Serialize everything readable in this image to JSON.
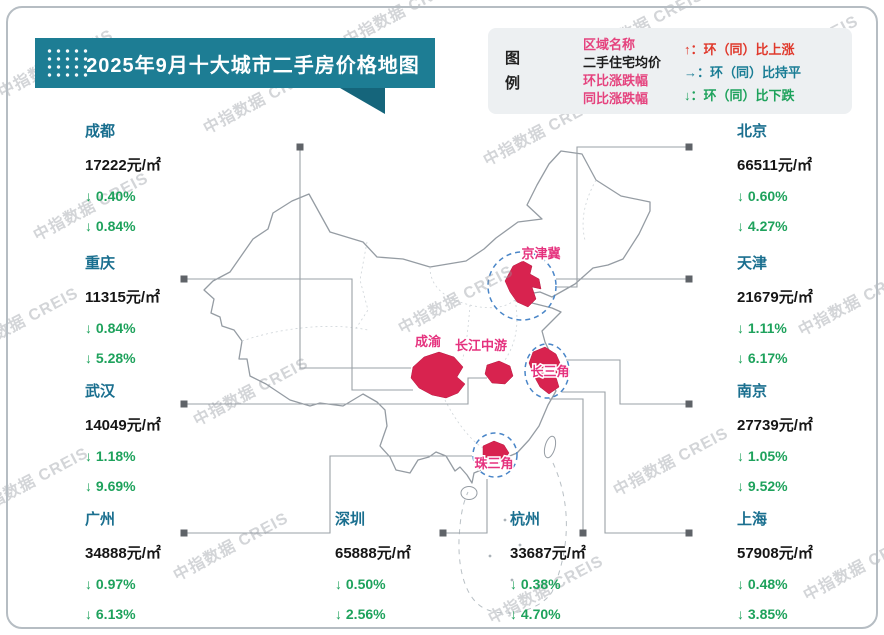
{
  "title": "2025年9月十大城市二手房价格地图",
  "watermark": "中指数据 CREIS",
  "legend": {
    "heading": "图例",
    "fields": [
      {
        "label": "区域名称",
        "color": "#e5437e"
      },
      {
        "label": "二手住宅均价",
        "color": "#1c1c1c"
      },
      {
        "label": "环比涨跌幅",
        "color": "#e5437e"
      },
      {
        "label": "同比涨跌幅",
        "color": "#e5437e"
      }
    ],
    "arrows": [
      {
        "symbol": "↑：",
        "label": "环（同）比上涨",
        "color": "#e0392c"
      },
      {
        "symbol": "→：",
        "label": "环（同）比持平",
        "color": "#1a7d95"
      },
      {
        "symbol": "↓：",
        "label": "环（同）比下跌",
        "color": "#1ea25c"
      }
    ]
  },
  "regions": [
    {
      "name": "京津冀"
    },
    {
      "name": "成渝"
    },
    {
      "name": "长江中游"
    },
    {
      "name": "长三角"
    },
    {
      "name": "珠三角"
    }
  ],
  "cities": [
    {
      "name": "成都",
      "price": "17222元/㎡",
      "mom": "↓ 0.40%",
      "yoy": "↓ 0.84%"
    },
    {
      "name": "重庆",
      "price": "11315元/㎡",
      "mom": "↓ 0.84%",
      "yoy": "↓ 5.28%"
    },
    {
      "name": "武汉",
      "price": "14049元/㎡",
      "mom": "↓ 1.18%",
      "yoy": "↓ 9.69%"
    },
    {
      "name": "广州",
      "price": "34888元/㎡",
      "mom": "↓ 0.97%",
      "yoy": "↓ 6.13%"
    },
    {
      "name": "深圳",
      "price": "65888元/㎡",
      "mom": "↓ 0.50%",
      "yoy": "↓ 2.56%"
    },
    {
      "name": "杭州",
      "price": "33687元/㎡",
      "mom": "↓ 0.38%",
      "yoy": "↓ 4.70%"
    },
    {
      "name": "北京",
      "price": "66511元/㎡",
      "mom": "↓ 0.60%",
      "yoy": "↓ 4.27%"
    },
    {
      "name": "天津",
      "price": "21679元/㎡",
      "mom": "↓ 1.11%",
      "yoy": "↓ 6.17%"
    },
    {
      "name": "南京",
      "price": "27739元/㎡",
      "mom": "↓ 1.05%",
      "yoy": "↓ 9.52%"
    },
    {
      "name": "上海",
      "price": "57908元/㎡",
      "mom": "↓ 0.48%",
      "yoy": "↓ 3.85%"
    }
  ],
  "colors": {
    "banner_teal": "#1d7d94",
    "region_red": "#d8234f",
    "region_label_pink": "#e5327e",
    "zone_circle_blue": "#4a86c8",
    "city_name_teal": "#1a6f8f",
    "change_green": "#1ea25c"
  }
}
